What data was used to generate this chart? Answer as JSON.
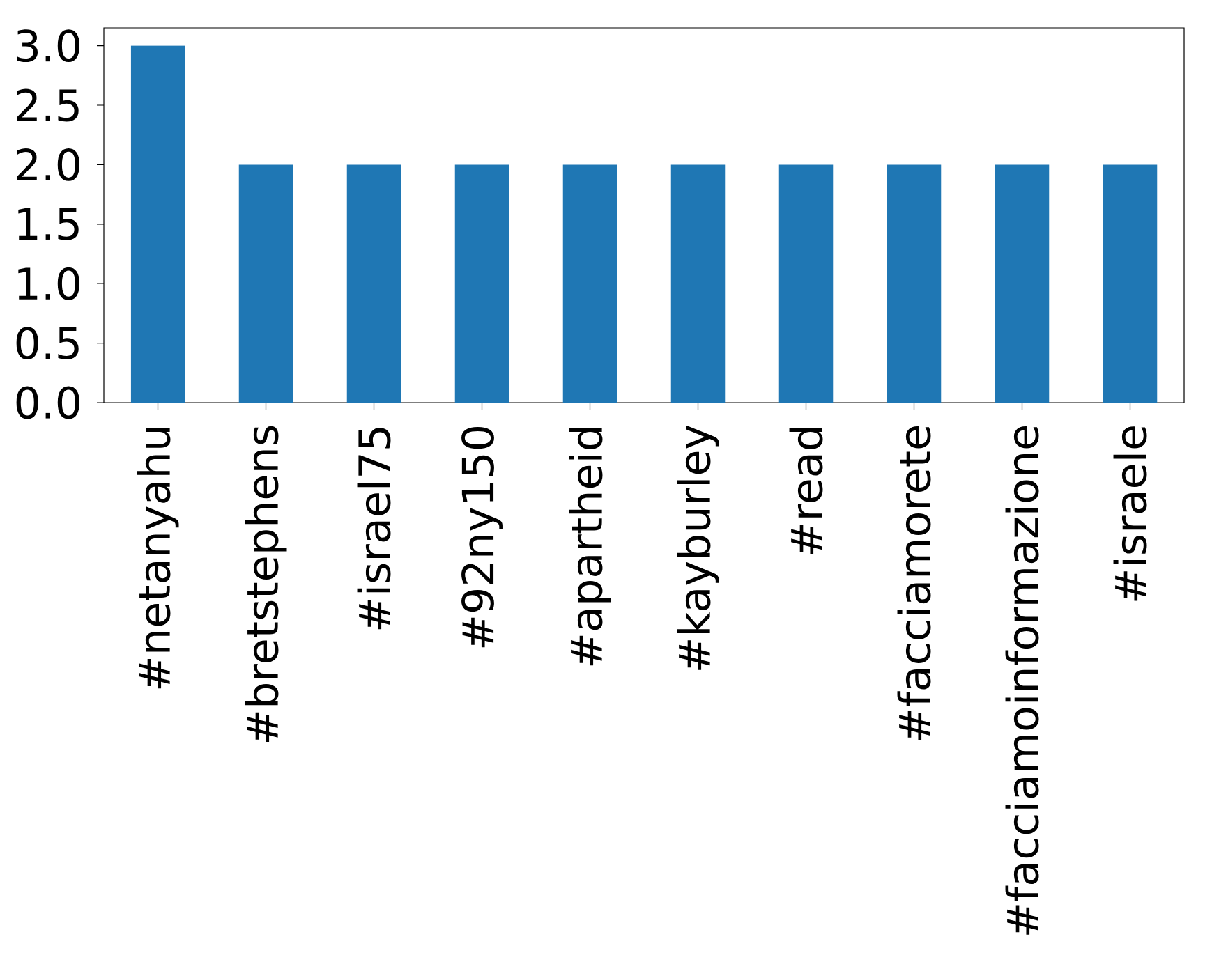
{
  "chart_data": {
    "type": "bar",
    "categories": [
      "#netanyahu",
      "#bretstephens",
      "#israel75",
      "#92ny150",
      "#apartheid",
      "#kayburley",
      "#read",
      "#facciamorete",
      "#facciamoinformazione",
      "#israele"
    ],
    "values": [
      3,
      2,
      2,
      2,
      2,
      2,
      2,
      2,
      2,
      2
    ],
    "color": "#1f77b4",
    "ylim": [
      0,
      3.15
    ],
    "yticks": [
      {
        "value": 0,
        "label": "0.0"
      },
      {
        "value": 0.5,
        "label": "0.5"
      },
      {
        "value": 1,
        "label": "1.0"
      },
      {
        "value": 1.5,
        "label": "1.5"
      },
      {
        "value": 2,
        "label": "2.0"
      },
      {
        "value": 2.5,
        "label": "2.5"
      },
      {
        "value": 3,
        "label": "3.0"
      }
    ],
    "grid": false
  }
}
